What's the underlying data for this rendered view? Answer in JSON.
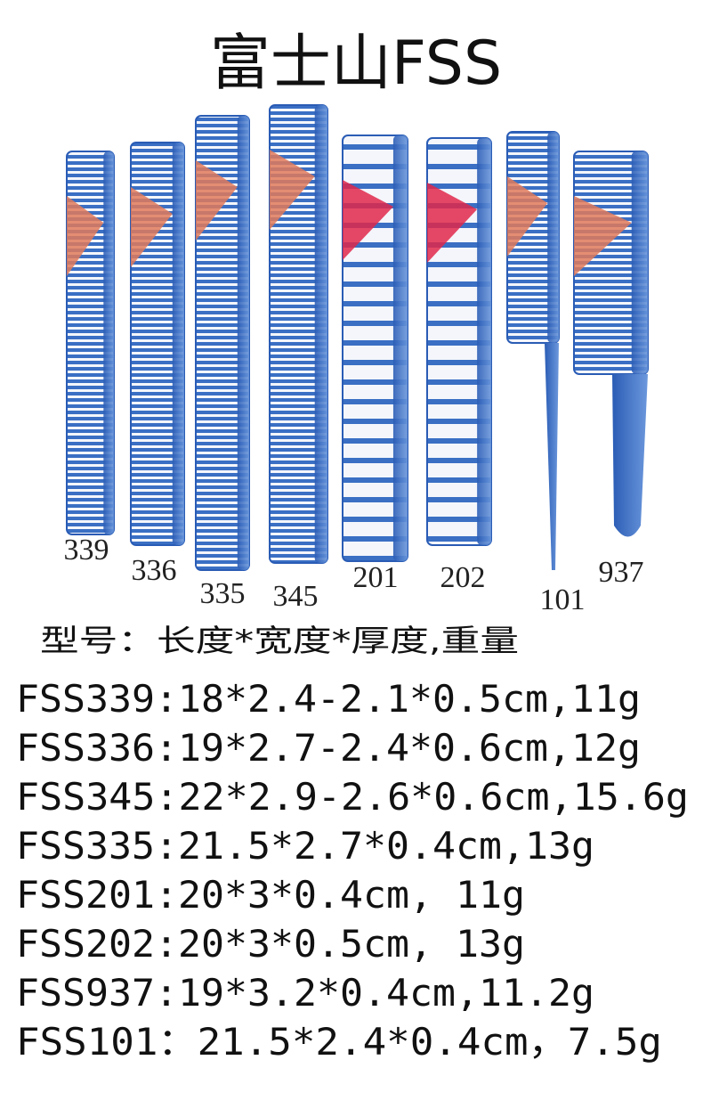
{
  "title": "富士山FSS",
  "combs": [
    {
      "label": "339"
    },
    {
      "label": "336"
    },
    {
      "label": "335"
    },
    {
      "label": "345"
    },
    {
      "label": "201"
    },
    {
      "label": "202"
    },
    {
      "label": "101"
    },
    {
      "label": "937"
    }
  ],
  "spec_header": "型号：长度*宽度*厚度,重量",
  "specs": [
    "FSS339:18*2.4-2.1*0.5cm,11g",
    "FSS336:19*2.7-2.4*0.6cm,12g",
    "FSS345:22*2.9-2.6*0.6cm,15.6g",
    "FSS335:21.5*2.7*0.4cm,13g",
    "FSS201:20*3*0.4cm, 11g",
    "FSS202:20*3*0.5cm, 13g",
    "FSS937:19*3.2*0.4cm,11.2g",
    "FSS101：21.5*2.4*0.4cm，7.5g"
  ]
}
